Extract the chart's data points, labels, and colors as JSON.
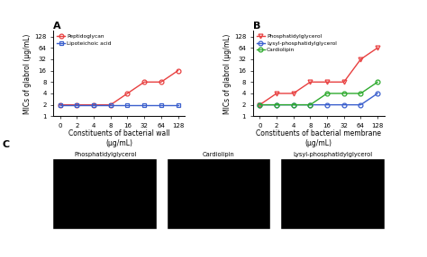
{
  "x_vals": [
    0,
    2,
    4,
    8,
    16,
    32,
    64,
    128
  ],
  "x_labels": [
    "0",
    "2",
    "4",
    "8",
    "16",
    "32",
    "64",
    "128"
  ],
  "panel_A": {
    "peptidoglycan": [
      2,
      2,
      2,
      2,
      4,
      8,
      8,
      16
    ],
    "lipoteichoic": [
      2,
      2,
      2,
      2,
      2,
      2,
      2,
      2
    ],
    "colors": {
      "peptidoglycan": "#E84040",
      "lipoteichoic": "#3A5FCD"
    },
    "xlabel": "Constituents of bacterial wall\n(μg/mL)",
    "ylabel": "MICs of glabrol (μg/mL)",
    "title": "A",
    "legend": [
      "Peptidoglycan",
      "Lipoteichoic acid"
    ]
  },
  "panel_B": {
    "phosphatidylglycerol": [
      2,
      4,
      4,
      8,
      8,
      8,
      32,
      64
    ],
    "lysyl_phosphatidylglycerol": [
      2,
      2,
      2,
      2,
      2,
      2,
      2,
      4
    ],
    "cardiolipin": [
      2,
      2,
      2,
      2,
      4,
      4,
      4,
      8
    ],
    "colors": {
      "phosphatidylglycerol": "#E84040",
      "lysyl_phosphatidylglycerol": "#3A5FCD",
      "cardiolipin": "#2EAA2E"
    },
    "xlabel": "Constituents of bacterial membrane\n(μg/mL)",
    "ylabel": "MICs of glabrol (μg/mL)",
    "title": "B",
    "legend": [
      "Phosphatidylglycerol",
      "Lysyl-phosphatidylglycerol",
      "Cardiolipin"
    ]
  },
  "panel_C_labels": [
    "Phosphatidylglycerol",
    "Cardiolipin",
    "Lysyl-phosphatidylglycerol"
  ],
  "yticks": [
    1,
    2,
    4,
    8,
    16,
    32,
    64,
    128
  ],
  "ytick_labels": [
    "1",
    "2",
    "4",
    "8",
    "16",
    "32",
    "64",
    "128"
  ],
  "background_color": "#ffffff"
}
